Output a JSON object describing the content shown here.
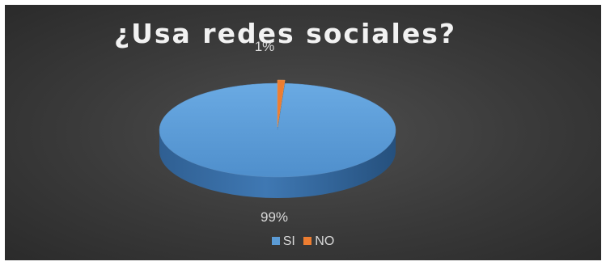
{
  "chart_data": {
    "type": "pie",
    "title": "¿Usa redes sociales?",
    "categories": [
      "SI",
      "NO"
    ],
    "values": [
      99,
      1
    ],
    "data_labels": [
      "99%",
      "1%"
    ],
    "colors": [
      "#5b9bd5",
      "#ed7d31"
    ],
    "style": "3d",
    "legend": "bottom"
  }
}
